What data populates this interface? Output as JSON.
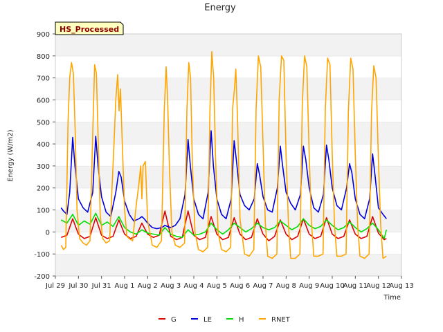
{
  "chart_data": {
    "type": "line",
    "title": "Energy",
    "xlabel": "Time",
    "ylabel": "Energy (W/m2)",
    "badge": "HS_Processed",
    "ylim": [
      -200,
      900
    ],
    "yticks": [
      -200,
      -100,
      0,
      100,
      200,
      300,
      400,
      500,
      600,
      700,
      800,
      900
    ],
    "xlim": [
      0,
      15
    ],
    "xtick_labels": [
      "Jul 29",
      "Jul 30",
      "Jul 31",
      "Aug 1",
      "Aug 2",
      "Aug 3",
      "Aug 4",
      "Aug 5",
      "Aug 6",
      "Aug 7",
      "Aug 8",
      "Aug 9",
      "Aug 10",
      "Aug 11",
      "Aug 12",
      "Aug 13"
    ],
    "x_unit": "days since Jul 29 00:00",
    "grid": "horizontal bands",
    "legend_position": "bottom",
    "series": [
      {
        "name": "G",
        "color": "#dd0000",
        "x": [
          0.25,
          0.5,
          0.75,
          1.0,
          1.25,
          1.5,
          1.75,
          2.0,
          2.25,
          2.5,
          2.75,
          3.0,
          3.25,
          3.5,
          3.75,
          4.0,
          4.25,
          4.5,
          4.75,
          5.0,
          5.25,
          5.5,
          5.75,
          6.0,
          6.25,
          6.5,
          6.75,
          7.0,
          7.25,
          7.5,
          7.75,
          8.0,
          8.25,
          8.5,
          8.75,
          9.0,
          9.25,
          9.5,
          9.75,
          10.0,
          10.25,
          10.5,
          10.75,
          11.0,
          11.25,
          11.5,
          11.75,
          12.0,
          12.25,
          12.5,
          12.75,
          13.0,
          13.25,
          13.5,
          13.75,
          14.0,
          14.25,
          14.35
        ],
        "y": [
          -25,
          -15,
          60,
          -10,
          -30,
          -20,
          65,
          -15,
          -30,
          -20,
          55,
          -10,
          -30,
          -20,
          40,
          -10,
          -25,
          -15,
          95,
          -20,
          -35,
          -25,
          95,
          -15,
          -35,
          -25,
          70,
          -10,
          -35,
          -25,
          65,
          -10,
          -35,
          -25,
          60,
          -10,
          -40,
          -20,
          55,
          -10,
          -35,
          -20,
          60,
          -10,
          -30,
          -20,
          65,
          -10,
          -30,
          -20,
          55,
          -10,
          -30,
          -20,
          70,
          -5,
          -35,
          -30
        ]
      },
      {
        "name": "LE",
        "color": "#0000dd",
        "x": [
          0.25,
          0.35,
          0.5,
          0.62,
          0.75,
          0.85,
          1.0,
          1.2,
          1.4,
          1.62,
          1.75,
          1.85,
          2.0,
          2.2,
          2.4,
          2.62,
          2.75,
          2.85,
          3.0,
          3.2,
          3.4,
          3.62,
          3.75,
          3.85,
          4.0,
          4.2,
          4.4,
          4.62,
          4.75,
          4.85,
          5.0,
          5.2,
          5.4,
          5.62,
          5.75,
          5.85,
          6.0,
          6.2,
          6.4,
          6.62,
          6.75,
          6.85,
          7.0,
          7.2,
          7.4,
          7.62,
          7.75,
          7.85,
          8.0,
          8.2,
          8.4,
          8.62,
          8.75,
          8.85,
          9.0,
          9.2,
          9.4,
          9.62,
          9.75,
          9.85,
          10.0,
          10.2,
          10.4,
          10.62,
          10.75,
          10.85,
          11.0,
          11.2,
          11.4,
          11.62,
          11.75,
          11.85,
          12.0,
          12.2,
          12.4,
          12.62,
          12.75,
          12.85,
          13.0,
          13.2,
          13.4,
          13.62,
          13.75,
          13.85,
          14.0,
          14.2,
          14.35
        ],
        "y": [
          110,
          95,
          80,
          180,
          430,
          300,
          150,
          110,
          90,
          180,
          435,
          300,
          160,
          90,
          70,
          180,
          275,
          250,
          140,
          80,
          50,
          60,
          70,
          60,
          40,
          20,
          15,
          20,
          30,
          25,
          20,
          30,
          60,
          170,
          420,
          300,
          150,
          80,
          60,
          180,
          460,
          300,
          150,
          80,
          60,
          150,
          415,
          320,
          170,
          120,
          100,
          150,
          310,
          260,
          160,
          100,
          90,
          200,
          390,
          300,
          180,
          130,
          100,
          170,
          390,
          330,
          200,
          110,
          90,
          170,
          395,
          330,
          200,
          120,
          100,
          200,
          310,
          270,
          150,
          80,
          60,
          150,
          355,
          260,
          110,
          80,
          60
        ]
      },
      {
        "name": "H",
        "color": "#00dd00",
        "x": [
          0.25,
          0.5,
          0.75,
          1.0,
          1.25,
          1.5,
          1.75,
          2.0,
          2.25,
          2.5,
          2.75,
          3.0,
          3.25,
          3.5,
          3.75,
          4.0,
          4.25,
          4.5,
          4.75,
          5.0,
          5.25,
          5.5,
          5.75,
          6.0,
          6.25,
          6.5,
          6.75,
          7.0,
          7.25,
          7.5,
          7.75,
          8.0,
          8.25,
          8.5,
          8.75,
          9.0,
          9.25,
          9.5,
          9.75,
          10.0,
          10.25,
          10.5,
          10.75,
          11.0,
          11.25,
          11.5,
          11.75,
          12.0,
          12.25,
          12.5,
          12.75,
          13.0,
          13.25,
          13.5,
          13.75,
          14.0,
          14.25,
          14.35
        ],
        "y": [
          55,
          40,
          80,
          30,
          50,
          35,
          85,
          30,
          45,
          25,
          70,
          20,
          0,
          -10,
          10,
          -5,
          -10,
          -15,
          20,
          -10,
          -20,
          -25,
          10,
          -15,
          -10,
          0,
          40,
          10,
          -10,
          10,
          40,
          20,
          0,
          15,
          40,
          20,
          10,
          20,
          50,
          30,
          10,
          25,
          60,
          30,
          15,
          25,
          55,
          30,
          10,
          20,
          45,
          20,
          0,
          15,
          40,
          10,
          -30,
          10
        ]
      },
      {
        "name": "RNET",
        "color": "#ffa500",
        "x": [
          0.25,
          0.35,
          0.45,
          0.55,
          0.62,
          0.7,
          0.78,
          0.86,
          0.94,
          1.05,
          1.2,
          1.35,
          1.5,
          1.62,
          1.7,
          1.78,
          1.86,
          1.94,
          2.05,
          2.2,
          2.35,
          2.5,
          2.62,
          2.7,
          2.76,
          2.82,
          2.9,
          3.0,
          3.1,
          3.2,
          3.35,
          3.5,
          3.6,
          3.7,
          3.75,
          3.8,
          3.9,
          4.0,
          4.2,
          4.4,
          4.6,
          4.72,
          4.8,
          4.86,
          4.94,
          5.05,
          5.2,
          5.4,
          5.6,
          5.7,
          5.78,
          5.86,
          5.94,
          6.05,
          6.2,
          6.4,
          6.6,
          6.7,
          6.78,
          6.86,
          6.94,
          7.05,
          7.2,
          7.4,
          7.6,
          7.68,
          7.76,
          7.82,
          7.9,
          8.0,
          8.2,
          8.4,
          8.6,
          8.7,
          8.8,
          8.9,
          9.0,
          9.1,
          9.2,
          9.4,
          9.6,
          9.7,
          9.8,
          9.9,
          10.0,
          10.1,
          10.2,
          10.4,
          10.6,
          10.7,
          10.8,
          10.9,
          11.0,
          11.1,
          11.2,
          11.4,
          11.6,
          11.7,
          11.8,
          11.9,
          12.0,
          12.1,
          12.2,
          12.4,
          12.6,
          12.7,
          12.8,
          12.9,
          13.0,
          13.1,
          13.2,
          13.4,
          13.6,
          13.7,
          13.8,
          13.9,
          14.0,
          14.1,
          14.2,
          14.35
        ],
        "y": [
          -60,
          -80,
          -70,
          500,
          700,
          770,
          720,
          450,
          100,
          -30,
          -50,
          -60,
          -40,
          450,
          760,
          720,
          400,
          80,
          -30,
          -50,
          -40,
          300,
          600,
          715,
          550,
          650,
          400,
          100,
          -20,
          -30,
          -40,
          120,
          200,
          300,
          150,
          300,
          320,
          50,
          -60,
          -70,
          -40,
          550,
          750,
          620,
          300,
          0,
          -60,
          -70,
          -50,
          550,
          770,
          700,
          300,
          0,
          -80,
          -90,
          -70,
          550,
          820,
          700,
          350,
          0,
          -80,
          -90,
          -70,
          560,
          650,
          740,
          500,
          60,
          -100,
          -110,
          -80,
          560,
          800,
          750,
          400,
          40,
          -110,
          -120,
          -100,
          600,
          800,
          780,
          350,
          40,
          -120,
          -120,
          -100,
          580,
          800,
          750,
          350,
          40,
          -110,
          -110,
          -100,
          560,
          790,
          760,
          350,
          30,
          -110,
          -110,
          -100,
          550,
          790,
          740,
          350,
          30,
          -110,
          -120,
          -100,
          540,
          755,
          700,
          330,
          30,
          -120,
          -110
        ]
      }
    ]
  }
}
